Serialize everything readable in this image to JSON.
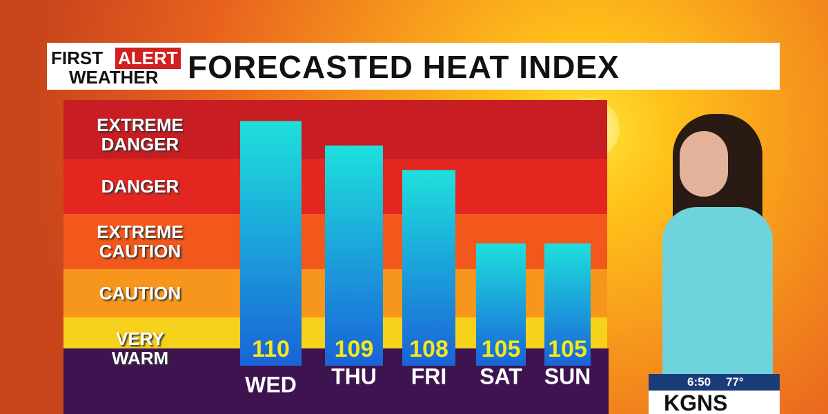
{
  "chart_data": {
    "type": "bar",
    "title": "FORECASTED HEAT INDEX",
    "categories": [
      "WED",
      "THU",
      "FRI",
      "SAT",
      "SUN"
    ],
    "values": [
      110,
      109,
      108,
      105,
      105
    ],
    "ylim": [
      100,
      111
    ],
    "bands": [
      "EXTREME DANGER",
      "DANGER",
      "EXTREME CAUTION",
      "CAUTION",
      "VERY WARM"
    ]
  },
  "logo": {
    "first": "FIRST",
    "alert": "ALERT",
    "weather": "WEATHER"
  },
  "overlay": {
    "time": "6:50",
    "temperature": "77°",
    "station": "KGNS"
  }
}
